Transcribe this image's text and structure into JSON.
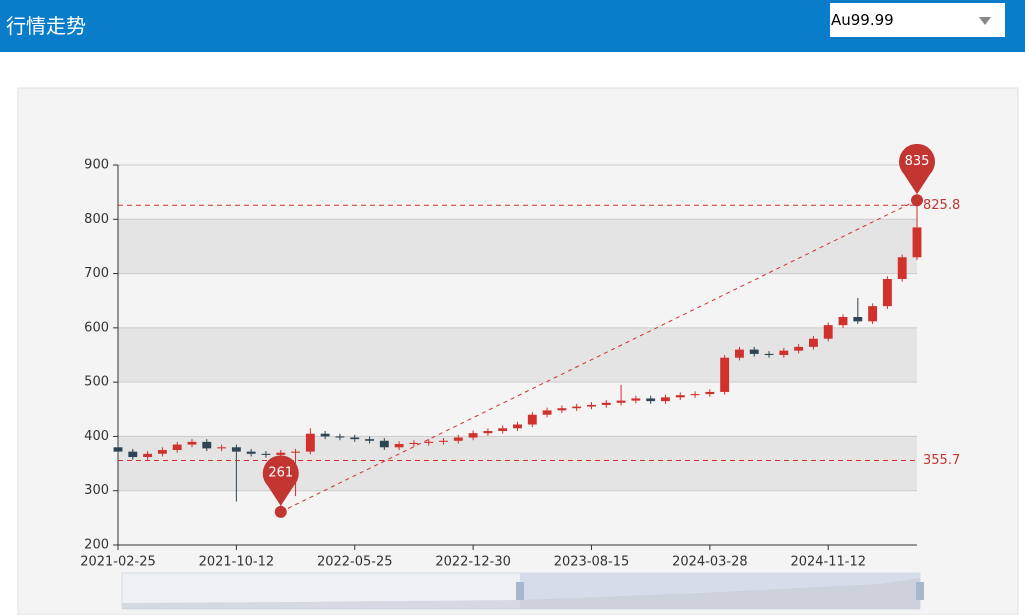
{
  "header": {
    "title": "行情走势",
    "select": "Au99.99"
  },
  "chart_data": {
    "type": "candlestick",
    "categories": [
      "2021-02-25",
      null,
      null,
      null,
      null,
      null,
      null,
      null,
      "2021-10-12",
      null,
      null,
      null,
      null,
      null,
      null,
      null,
      "2022-05-25",
      null,
      null,
      null,
      null,
      null,
      null,
      null,
      "2022-12-30",
      null,
      null,
      null,
      null,
      null,
      null,
      null,
      "2023-08-15",
      null,
      null,
      null,
      null,
      null,
      null,
      null,
      "2024-03-28",
      null,
      null,
      null,
      null,
      null,
      null,
      null,
      "2024-11-12",
      null,
      null,
      null,
      null,
      null,
      null
    ],
    "series": [
      {
        "up_color": "#d0312d",
        "down_color": "#2f4554",
        "open": [
          380,
          372,
          362,
          368,
          375,
          385,
          390,
          378,
          380,
          372,
          368,
          366,
          370,
          372,
          405,
          400,
          398,
          395,
          392,
          380,
          386,
          388,
          390,
          392,
          398,
          406,
          410,
          415,
          422,
          440,
          448,
          452,
          455,
          458,
          462,
          466,
          470,
          465,
          472,
          476,
          478,
          482,
          545,
          560,
          552,
          550,
          558,
          565,
          580,
          605,
          620,
          612,
          640,
          690,
          730
        ],
        "close": [
          372,
          362,
          368,
          375,
          385,
          390,
          378,
          380,
          372,
          368,
          366,
          370,
          372,
          405,
          400,
          398,
          395,
          392,
          380,
          386,
          388,
          390,
          392,
          398,
          406,
          410,
          415,
          422,
          440,
          448,
          452,
          455,
          458,
          462,
          466,
          470,
          465,
          472,
          476,
          478,
          482,
          545,
          560,
          552,
          550,
          558,
          565,
          580,
          605,
          620,
          612,
          640,
          690,
          730,
          785
        ],
        "low": [
          367,
          357,
          357,
          363,
          370,
          380,
          373,
          373,
          280,
          363,
          361,
          261,
          290,
          367,
          395,
          393,
          390,
          387,
          375,
          375,
          381,
          383,
          385,
          387,
          393,
          401,
          405,
          410,
          417,
          435,
          443,
          447,
          450,
          453,
          457,
          461,
          460,
          460,
          467,
          471,
          473,
          477,
          540,
          547,
          545,
          545,
          553,
          560,
          575,
          600,
          607,
          607,
          635,
          685,
          725
        ],
        "high": [
          385,
          377,
          373,
          380,
          390,
          395,
          395,
          385,
          385,
          377,
          373,
          375,
          377,
          415,
          410,
          405,
          403,
          400,
          397,
          391,
          393,
          395,
          397,
          403,
          411,
          415,
          420,
          427,
          445,
          453,
          457,
          460,
          463,
          467,
          495,
          475,
          475,
          477,
          481,
          483,
          487,
          550,
          565,
          565,
          557,
          563,
          570,
          585,
          610,
          625,
          655,
          645,
          695,
          735,
          835
        ]
      }
    ],
    "ylim": [
      200,
      900
    ],
    "yticks": [
      200,
      300,
      400,
      500,
      600,
      700,
      800,
      900
    ],
    "mark_points": [
      835,
      261
    ],
    "mark_lines": [
      825.8,
      355.7
    ],
    "grid": true
  }
}
